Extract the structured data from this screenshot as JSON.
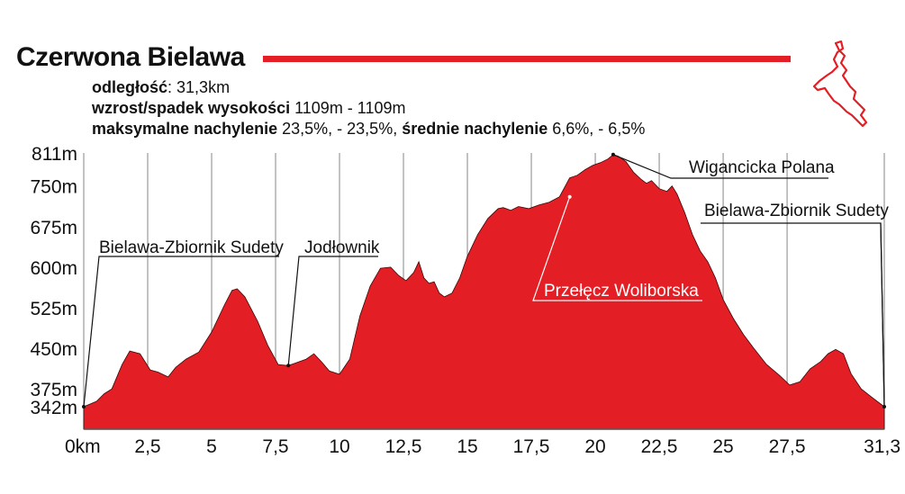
{
  "header": {
    "title": "Czerwona Bielawa",
    "accent_color": "#e31e24",
    "stats": [
      {
        "label": "odległość",
        "sep": ": ",
        "value": "31,3km"
      },
      {
        "label": "wzrost/spadek wysokości",
        "sep": " ",
        "value": "1109m - 1109m"
      }
    ],
    "stats_line3": {
      "label1": "maksymalne nachylenie",
      "value1": " 23,5%, - 23,5%, ",
      "label2": "średnie nachylenie",
      "value2": " 6,6%, - 6,5%"
    }
  },
  "route_map": {
    "icon": "route-map-icon",
    "color": "#e31e24"
  },
  "chart_data": {
    "type": "area",
    "fill_color": "#e31e24",
    "grid": "vertical",
    "xlim": [
      0,
      31.3
    ],
    "ylim": [
      342,
      811
    ],
    "x_ticks": [
      {
        "v": 0,
        "label": "0km"
      },
      {
        "v": 2.5,
        "label": "2,5"
      },
      {
        "v": 5,
        "label": "5"
      },
      {
        "v": 7.5,
        "label": "7,5"
      },
      {
        "v": 10,
        "label": "10"
      },
      {
        "v": 12.5,
        "label": "12,5"
      },
      {
        "v": 15,
        "label": "15"
      },
      {
        "v": 17.5,
        "label": "17,5"
      },
      {
        "v": 20,
        "label": "20"
      },
      {
        "v": 22.5,
        "label": "22,5"
      },
      {
        "v": 25,
        "label": "25"
      },
      {
        "v": 27.5,
        "label": "27,5"
      },
      {
        "v": 31.3,
        "label": "31,3"
      }
    ],
    "y_ticks": [
      {
        "v": 811,
        "label": "811m"
      },
      {
        "v": 750,
        "label": "750m"
      },
      {
        "v": 675,
        "label": "675m"
      },
      {
        "v": 600,
        "label": "600m"
      },
      {
        "v": 525,
        "label": "525m"
      },
      {
        "v": 450,
        "label": "450m"
      },
      {
        "v": 375,
        "label": "375m"
      },
      {
        "v": 342,
        "label": "342m"
      }
    ],
    "x": [
      0,
      0.5,
      0.8,
      1.1,
      1.5,
      1.8,
      2.2,
      2.6,
      2.9,
      3.3,
      3.6,
      4.0,
      4.5,
      5.0,
      5.5,
      5.8,
      6.0,
      6.3,
      6.8,
      7.2,
      7.6,
      8.0,
      8.3,
      8.7,
      9.0,
      9.3,
      9.6,
      10.0,
      10.4,
      10.8,
      11.2,
      11.6,
      12.0,
      12.3,
      12.6,
      12.9,
      13.1,
      13.3,
      13.5,
      13.7,
      13.9,
      14.1,
      14.4,
      14.7,
      15.0,
      15.4,
      15.8,
      16.2,
      16.4,
      16.7,
      17.0,
      17.4,
      17.8,
      18.2,
      18.6,
      19.0,
      19.3,
      19.6,
      19.9,
      20.2,
      20.5,
      20.7,
      20.9,
      21.2,
      21.5,
      21.8,
      22.0,
      22.2,
      22.5,
      22.8,
      23.0,
      23.2,
      23.5,
      23.8,
      24.1,
      24.4,
      24.7,
      25.0,
      25.4,
      25.8,
      26.2,
      26.7,
      27.2,
      27.6,
      28.0,
      28.4,
      28.8,
      29.1,
      29.4,
      29.7,
      30.0,
      30.4,
      30.8,
      31.3
    ],
    "y": [
      342,
      352,
      366,
      375,
      420,
      445,
      440,
      410,
      406,
      397,
      415,
      430,
      443,
      480,
      530,
      557,
      560,
      545,
      500,
      455,
      420,
      418,
      423,
      430,
      440,
      425,
      408,
      402,
      430,
      510,
      565,
      598,
      600,
      585,
      575,
      590,
      610,
      580,
      570,
      573,
      552,
      545,
      552,
      580,
      620,
      660,
      690,
      708,
      710,
      705,
      712,
      708,
      715,
      720,
      730,
      765,
      770,
      780,
      788,
      793,
      800,
      808,
      805,
      795,
      775,
      762,
      755,
      760,
      745,
      740,
      750,
      735,
      700,
      660,
      630,
      610,
      580,
      540,
      505,
      475,
      450,
      420,
      400,
      382,
      388,
      412,
      425,
      440,
      448,
      440,
      403,
      375,
      360,
      342
    ],
    "annotations": [
      {
        "text": "Bielawa-Zbiornik Sudety",
        "x": 0,
        "y": 342,
        "color": "#111111"
      },
      {
        "text": "Jodłownik",
        "x": 8,
        "y": 418,
        "color": "#111111"
      },
      {
        "text": "Przełęcz Woliborska",
        "x": 19.0,
        "y": 730,
        "color": "#ffffff"
      },
      {
        "text": "Wigancicka Polana",
        "x": 20.7,
        "y": 808,
        "color": "#111111"
      },
      {
        "text": "Bielawa-Zbiornik Sudety",
        "x": 31.3,
        "y": 342,
        "color": "#111111"
      }
    ]
  }
}
